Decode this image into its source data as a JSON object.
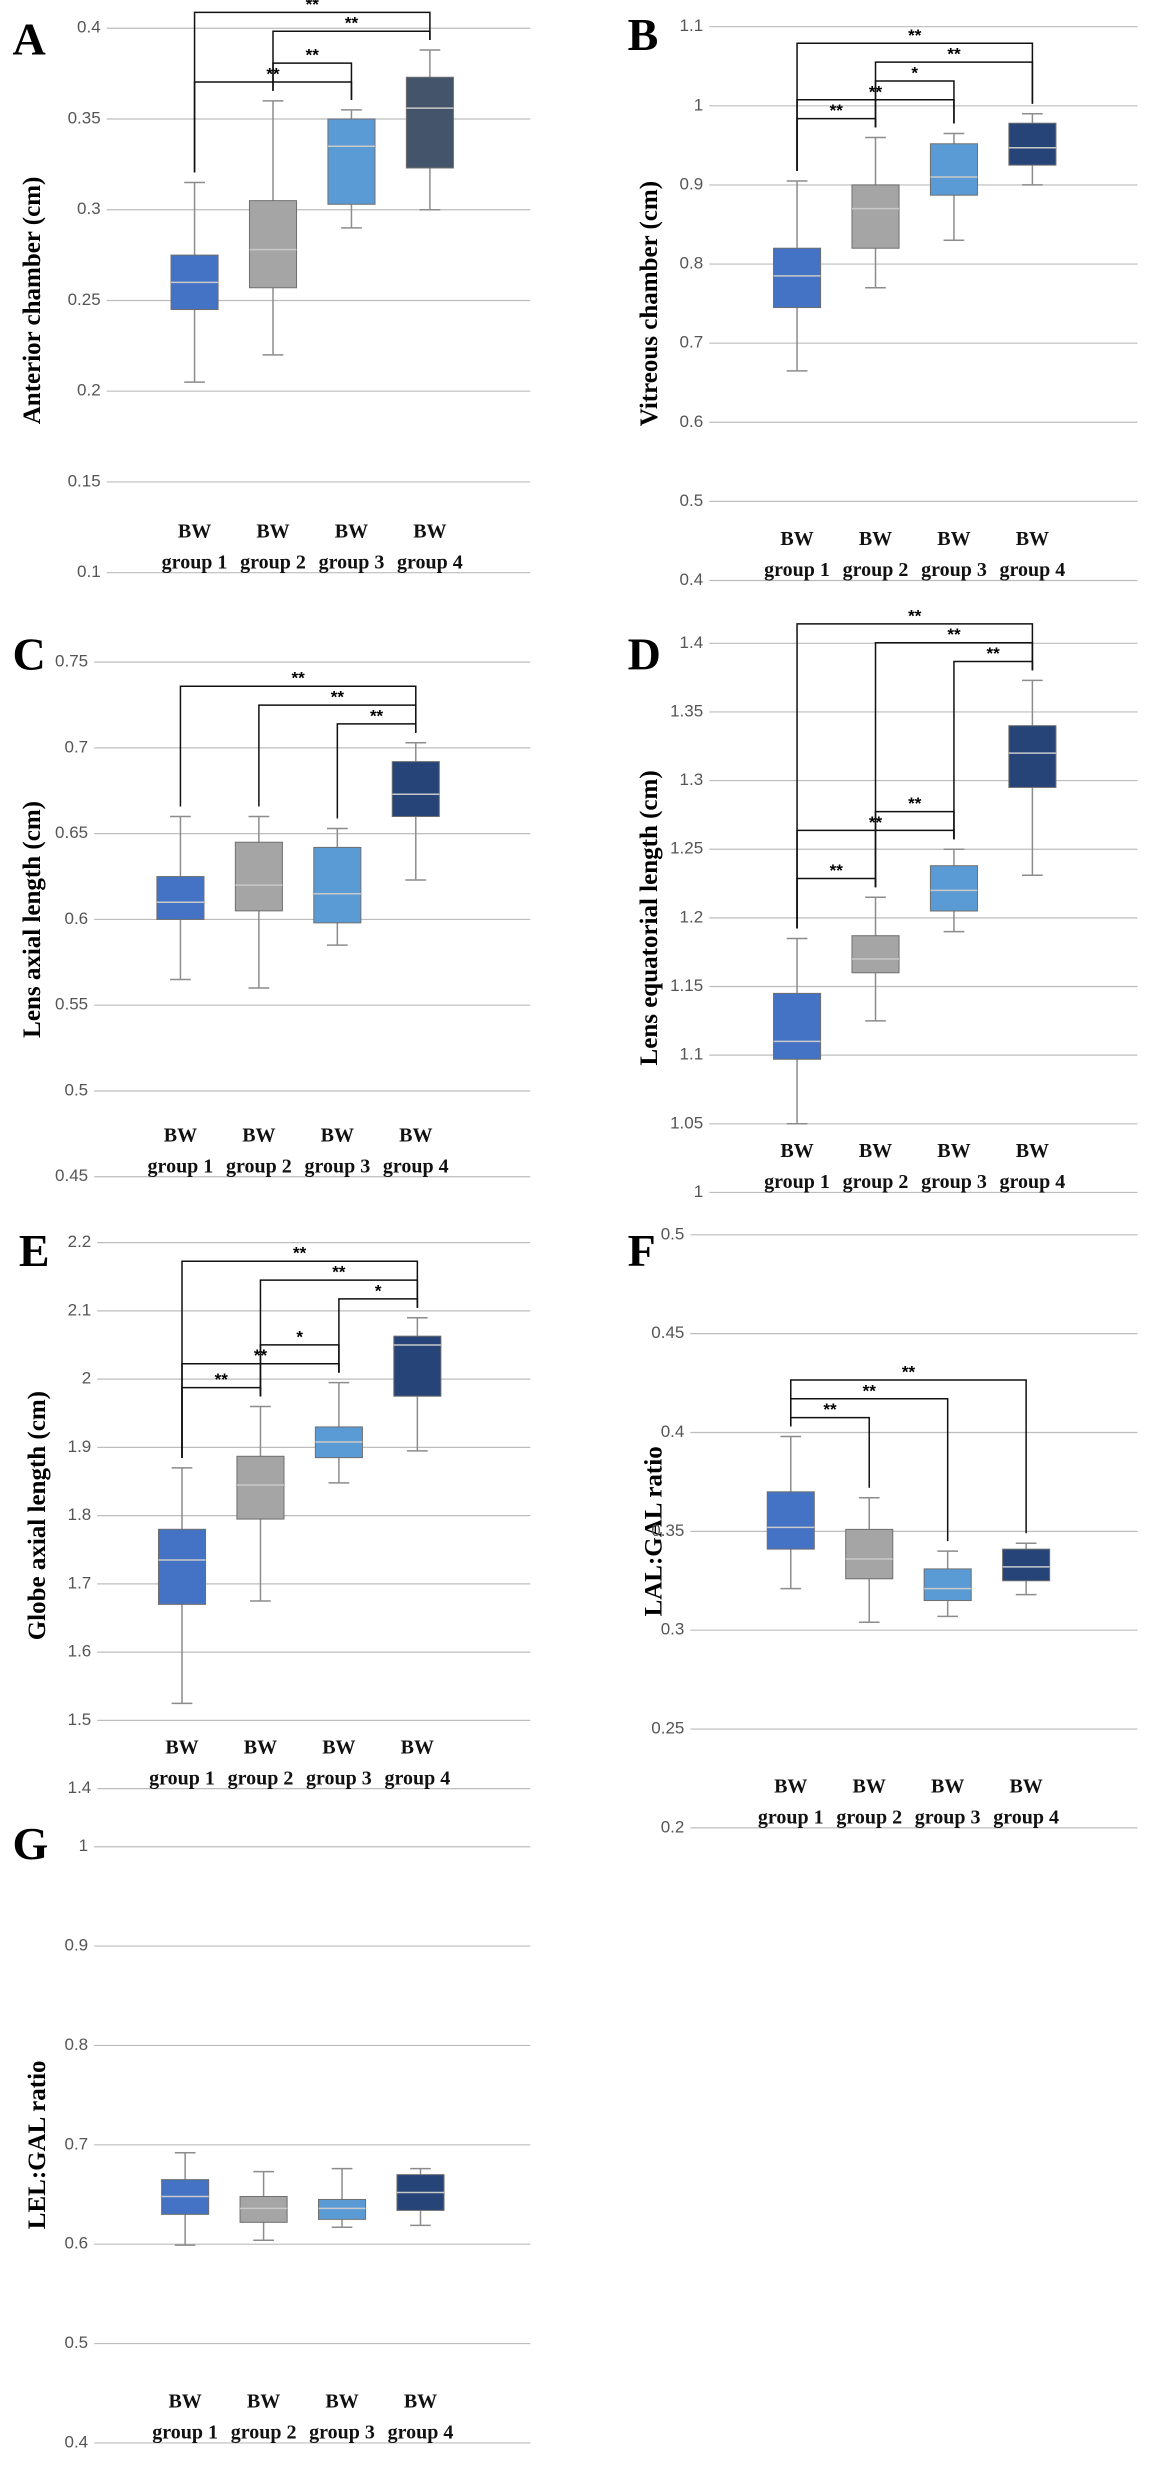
{
  "chart_data": [
    {
      "type": "box",
      "panel": "A",
      "y_label": "Anterior chamber (cm)",
      "ylim": [
        0.1,
        0.4
      ],
      "yticks": [
        0.1,
        0.15,
        0.2,
        0.25,
        0.3,
        0.35,
        0.4
      ],
      "grid": true,
      "categories": [
        [
          "BW",
          "group 1"
        ],
        [
          "BW",
          "group 2"
        ],
        [
          "BW",
          "group 3"
        ],
        [
          "BW",
          "group 4"
        ]
      ],
      "colors": [
        "#4472c4",
        "#a5a5a5",
        "#5b9bd5",
        "#44546a"
      ],
      "boxes": [
        {
          "min": 0.205,
          "q1": 0.245,
          "median": 0.26,
          "q3": 0.275,
          "max": 0.315
        },
        {
          "min": 0.22,
          "q1": 0.257,
          "median": 0.278,
          "q3": 0.305,
          "max": 0.36
        },
        {
          "min": 0.29,
          "q1": 0.303,
          "median": 0.335,
          "q3": 0.35,
          "max": 0.355
        },
        {
          "min": 0.3,
          "q1": 0.323,
          "median": 0.356,
          "q3": 0.373,
          "max": 0.388
        }
      ],
      "brackets": [
        {
          "from": 0,
          "to": 2,
          "label": "**"
        },
        {
          "from": 1,
          "to": 2,
          "label": "**"
        },
        {
          "from": 1,
          "to": 3,
          "label": "**"
        },
        {
          "from": 0,
          "to": 3,
          "label": "**"
        }
      ]
    },
    {
      "type": "box",
      "panel": "B",
      "y_label": "Vitreous chamber (cm)",
      "ylim": [
        0.4,
        1.1
      ],
      "yticks": [
        0.4,
        0.5,
        0.6,
        0.7,
        0.8,
        0.9,
        1,
        1.1
      ],
      "grid": true,
      "categories": [
        [
          "BW",
          "group 1"
        ],
        [
          "BW",
          "group 2"
        ],
        [
          "BW",
          "group 3"
        ],
        [
          "BW",
          "group 4"
        ]
      ],
      "colors": [
        "#4472c4",
        "#a5a5a5",
        "#5b9bd5",
        "#264478"
      ],
      "boxes": [
        {
          "min": 0.665,
          "q1": 0.745,
          "median": 0.785,
          "q3": 0.82,
          "max": 0.905
        },
        {
          "min": 0.77,
          "q1": 0.82,
          "median": 0.87,
          "q3": 0.9,
          "max": 0.96
        },
        {
          "min": 0.83,
          "q1": 0.887,
          "median": 0.91,
          "q3": 0.952,
          "max": 0.965
        },
        {
          "min": 0.9,
          "q1": 0.925,
          "median": 0.947,
          "q3": 0.978,
          "max": 0.99
        }
      ],
      "brackets": [
        {
          "from": 0,
          "to": 1,
          "label": "**"
        },
        {
          "from": 0,
          "to": 2,
          "label": "**"
        },
        {
          "from": 1,
          "to": 2,
          "label": "*"
        },
        {
          "from": 1,
          "to": 3,
          "label": "**"
        },
        {
          "from": 0,
          "to": 3,
          "label": "**"
        }
      ]
    },
    {
      "type": "box",
      "panel": "C",
      "y_label": "Lens axial length (cm)",
      "ylim": [
        0.45,
        0.75
      ],
      "yticks": [
        0.45,
        0.5,
        0.55,
        0.6,
        0.65,
        0.7,
        0.75
      ],
      "grid": true,
      "categories": [
        [
          "BW",
          "group 1"
        ],
        [
          "BW",
          "group 2"
        ],
        [
          "BW",
          "group 3"
        ],
        [
          "BW",
          "group 4"
        ]
      ],
      "colors": [
        "#4472c4",
        "#a5a5a5",
        "#5b9bd5",
        "#264478"
      ],
      "boxes": [
        {
          "min": 0.565,
          "q1": 0.6,
          "median": 0.61,
          "q3": 0.625,
          "max": 0.66
        },
        {
          "min": 0.56,
          "q1": 0.605,
          "median": 0.62,
          "q3": 0.645,
          "max": 0.66
        },
        {
          "min": 0.585,
          "q1": 0.598,
          "median": 0.615,
          "q3": 0.642,
          "max": 0.653
        },
        {
          "min": 0.623,
          "q1": 0.66,
          "median": 0.673,
          "q3": 0.692,
          "max": 0.703
        }
      ],
      "brackets": [
        {
          "from": 2,
          "to": 3,
          "label": "**"
        },
        {
          "from": 1,
          "to": 3,
          "label": "**"
        },
        {
          "from": 0,
          "to": 3,
          "label": "**"
        }
      ]
    },
    {
      "type": "box",
      "panel": "D",
      "y_label": "Lens equatorial length (cm)",
      "ylim": [
        1,
        1.4
      ],
      "yticks": [
        1,
        1.05,
        1.1,
        1.15,
        1.2,
        1.25,
        1.3,
        1.35,
        1.4
      ],
      "grid": true,
      "categories": [
        [
          "BW",
          "group 1"
        ],
        [
          "BW",
          "group 2"
        ],
        [
          "BW",
          "group 3"
        ],
        [
          "BW",
          "group 4"
        ]
      ],
      "colors": [
        "#4472c4",
        "#a5a5a5",
        "#5b9bd5",
        "#264478"
      ],
      "boxes": [
        {
          "min": 1.05,
          "q1": 1.097,
          "median": 1.11,
          "q3": 1.145,
          "max": 1.185
        },
        {
          "min": 1.125,
          "q1": 1.16,
          "median": 1.17,
          "q3": 1.187,
          "max": 1.215
        },
        {
          "min": 1.19,
          "q1": 1.205,
          "median": 1.22,
          "q3": 1.238,
          "max": 1.25
        },
        {
          "min": 1.231,
          "q1": 1.295,
          "median": 1.32,
          "q3": 1.34,
          "max": 1.373
        }
      ],
      "brackets": [
        {
          "from": 0,
          "to": 1,
          "label": "**"
        },
        {
          "from": 0,
          "to": 2,
          "label": "**"
        },
        {
          "from": 1,
          "to": 2,
          "label": "**"
        },
        {
          "from": 2,
          "to": 3,
          "label": "**"
        },
        {
          "from": 1,
          "to": 3,
          "label": "**"
        },
        {
          "from": 0,
          "to": 3,
          "label": "**"
        }
      ]
    },
    {
      "type": "box",
      "panel": "E",
      "y_label": "Globe axial length (cm)",
      "ylim": [
        1.4,
        2.2
      ],
      "yticks": [
        1.4,
        1.5,
        1.6,
        1.7,
        1.8,
        1.9,
        2,
        2.1,
        2.2
      ],
      "grid": true,
      "categories": [
        [
          "BW",
          "group 1"
        ],
        [
          "BW",
          "group 2"
        ],
        [
          "BW",
          "group 3"
        ],
        [
          "BW",
          "group 4"
        ]
      ],
      "colors": [
        "#4472c4",
        "#a5a5a5",
        "#5b9bd5",
        "#264478"
      ],
      "boxes": [
        {
          "min": 1.525,
          "q1": 1.67,
          "median": 1.735,
          "q3": 1.78,
          "max": 1.87
        },
        {
          "min": 1.675,
          "q1": 1.795,
          "median": 1.845,
          "q3": 1.887,
          "max": 1.96
        },
        {
          "min": 1.848,
          "q1": 1.885,
          "median": 1.908,
          "q3": 1.93,
          "max": 1.995
        },
        {
          "min": 1.895,
          "q1": 1.975,
          "median": 2.05,
          "q3": 2.063,
          "max": 2.09
        }
      ],
      "brackets": [
        {
          "from": 0,
          "to": 1,
          "label": "**"
        },
        {
          "from": 0,
          "to": 2,
          "label": "**"
        },
        {
          "from": 1,
          "to": 2,
          "label": "*"
        },
        {
          "from": 2,
          "to": 3,
          "label": "*"
        },
        {
          "from": 1,
          "to": 3,
          "label": "**"
        },
        {
          "from": 0,
          "to": 3,
          "label": "**"
        }
      ]
    },
    {
      "type": "box",
      "panel": "F",
      "y_label": "LAL:GAL ratio",
      "ylim": [
        0.2,
        0.5
      ],
      "yticks": [
        0.2,
        0.25,
        0.3,
        0.35,
        0.4,
        0.45,
        0.5
      ],
      "grid": true,
      "categories": [
        [
          "BW",
          "group 1"
        ],
        [
          "BW",
          "group 2"
        ],
        [
          "BW",
          "group 3"
        ],
        [
          "BW",
          "group 4"
        ]
      ],
      "colors": [
        "#4472c4",
        "#a5a5a5",
        "#5b9bd5",
        "#264478"
      ],
      "boxes": [
        {
          "min": 0.321,
          "q1": 0.341,
          "median": 0.352,
          "q3": 0.37,
          "max": 0.398
        },
        {
          "min": 0.304,
          "q1": 0.326,
          "median": 0.336,
          "q3": 0.351,
          "max": 0.367
        },
        {
          "min": 0.307,
          "q1": 0.315,
          "median": 0.321,
          "q3": 0.331,
          "max": 0.34
        },
        {
          "min": 0.318,
          "q1": 0.325,
          "median": 0.332,
          "q3": 0.341,
          "max": 0.344
        }
      ],
      "brackets": [
        {
          "from": 0,
          "to": 1,
          "label": "**"
        },
        {
          "from": 0,
          "to": 2,
          "label": "**"
        },
        {
          "from": 0,
          "to": 3,
          "label": "**"
        }
      ]
    },
    {
      "type": "box",
      "panel": "G",
      "y_label": "LEL:GAL ratio",
      "ylim": [
        0.4,
        1
      ],
      "yticks": [
        0.4,
        0.5,
        0.6,
        0.7,
        0.8,
        0.9,
        1
      ],
      "grid": true,
      "categories": [
        [
          "BW",
          "group 1"
        ],
        [
          "BW",
          "group 2"
        ],
        [
          "BW",
          "group 3"
        ],
        [
          "BW",
          "group 4"
        ]
      ],
      "colors": [
        "#4472c4",
        "#a5a5a5",
        "#5b9bd5",
        "#264478"
      ],
      "boxes": [
        {
          "min": 0.599,
          "q1": 0.63,
          "median": 0.648,
          "q3": 0.665,
          "max": 0.692
        },
        {
          "min": 0.604,
          "q1": 0.622,
          "median": 0.636,
          "q3": 0.648,
          "max": 0.673
        },
        {
          "min": 0.617,
          "q1": 0.625,
          "median": 0.636,
          "q3": 0.645,
          "max": 0.676
        },
        {
          "min": 0.619,
          "q1": 0.634,
          "median": 0.652,
          "q3": 0.67,
          "max": 0.676
        }
      ],
      "brackets": []
    }
  ]
}
